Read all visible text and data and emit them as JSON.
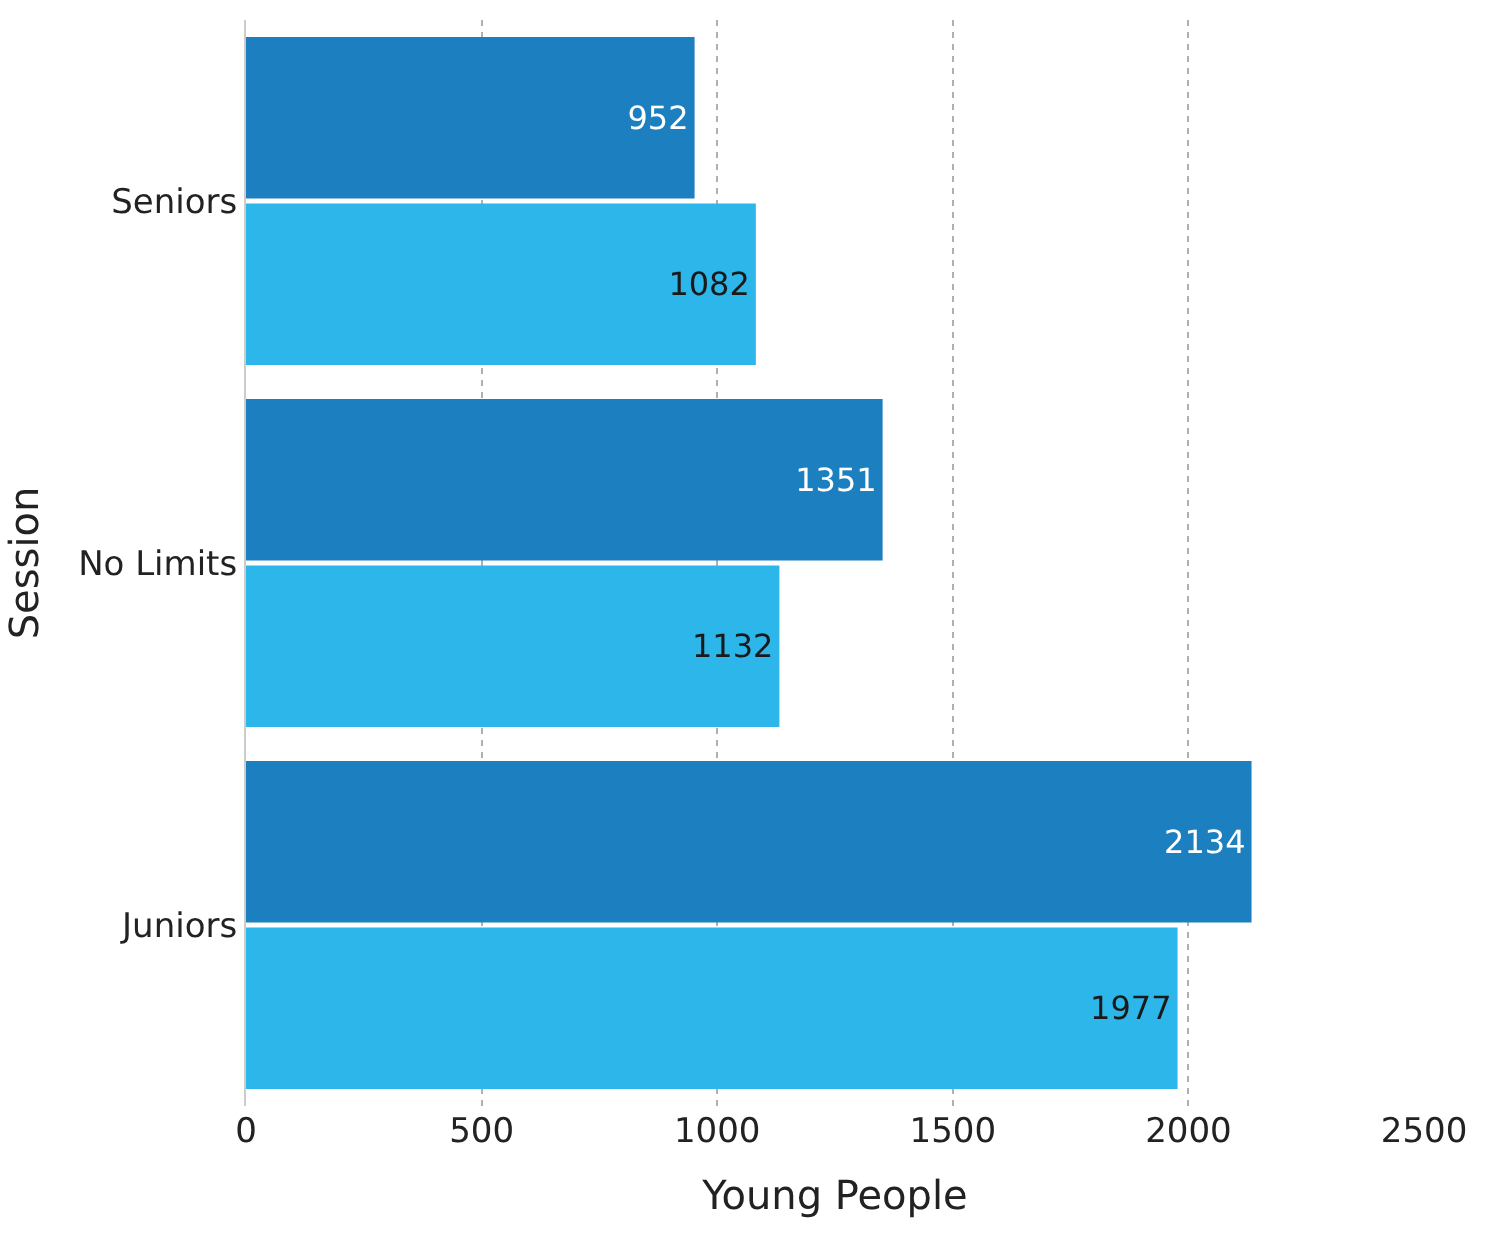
{
  "chart_data": {
    "type": "bar",
    "orientation": "horizontal",
    "xlabel": "Young People",
    "ylabel": "Session",
    "categories": [
      "Seniors",
      "No Limits",
      "Juniors"
    ],
    "series": [
      {
        "color": "#1b7fc0",
        "values": [
          952,
          1351,
          2134
        ]
      },
      {
        "color": "#2cb6ea",
        "values": [
          1082,
          1132,
          1977
        ]
      }
    ],
    "xlim": [
      0,
      2500
    ],
    "xticks": [
      0,
      500,
      1000,
      1500,
      2000,
      2500
    ],
    "grid": "x",
    "data_labels": true
  }
}
